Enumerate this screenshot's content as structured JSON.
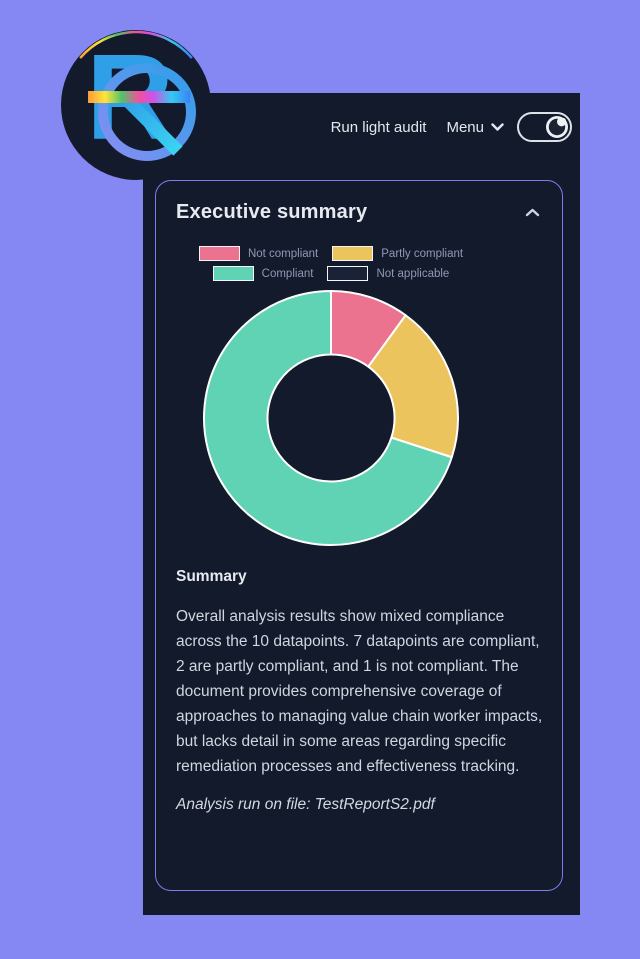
{
  "theme": {
    "background": "#8588f2",
    "panel_bg": "#131a2b",
    "card_border": "#7a7ff0",
    "separator": "#ffffff",
    "text_muted": "#8e99b4",
    "text_light": "#e8eaf1",
    "text_body": "#d0d5df"
  },
  "topbar": {
    "run_audit_label": "Run light audit",
    "menu_label": "Menu",
    "theme_toggle_state": "dark-mode-on"
  },
  "logo": {
    "letter": "R"
  },
  "card": {
    "title": "Executive summary",
    "collapse_state": "expanded",
    "summary_heading": "Summary",
    "summary_text": "Overall analysis results show mixed compliance across the 10 datapoints. 7 datapoints are compliant, 2 are partly compliant, and 1 is not compliant. The document provides comprehensive coverage of approaches to managing value chain worker impacts, but lacks detail in some areas regarding specific remediation processes and effectiveness tracking.",
    "file_note": "Analysis run on file: TestReportS2.pdf"
  },
  "chart_data": {
    "type": "pie",
    "subtype": "donut",
    "categories": [
      "Not compliant",
      "Partly compliant",
      "Compliant",
      "Not applicable"
    ],
    "values": [
      1,
      2,
      7,
      0
    ],
    "colors": [
      "#ec7390",
      "#ecc45e",
      "#5fd3b4",
      "#1a2238"
    ],
    "total_datapoints": 10,
    "start_angle_deg": 0,
    "direction": "clockwise",
    "inner_radius_ratio": 0.5,
    "legend_position": "top",
    "title": ""
  }
}
